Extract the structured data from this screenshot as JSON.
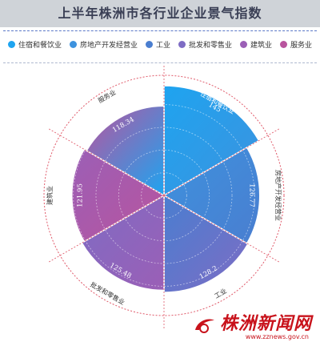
{
  "title": "上半年株洲市各行业企业景气指数",
  "colors": {
    "title_bar": "#cfd3d8",
    "series": [
      "#1ea4f0",
      "#3d92de",
      "#4a7ed0",
      "#7e6cc4",
      "#9b5fb6",
      "#b9549e"
    ]
  },
  "chart_data": {
    "type": "rose",
    "categories": [
      "住宿和餐饮业",
      "房地产开发经营业",
      "工业",
      "批发和零售业",
      "建筑业",
      "服务业"
    ],
    "values": [
      145,
      126.77,
      128.2,
      125.48,
      121.95,
      118.34
    ],
    "value_labels": [
      "145",
      "126.77",
      "128.2",
      "125.48",
      "121.95",
      "118.34"
    ],
    "rlim": [
      0,
      160
    ],
    "legend_position": "top"
  },
  "watermark": {
    "text": "株洲新闻网",
    "url": "www.zznews.gov.cn"
  }
}
